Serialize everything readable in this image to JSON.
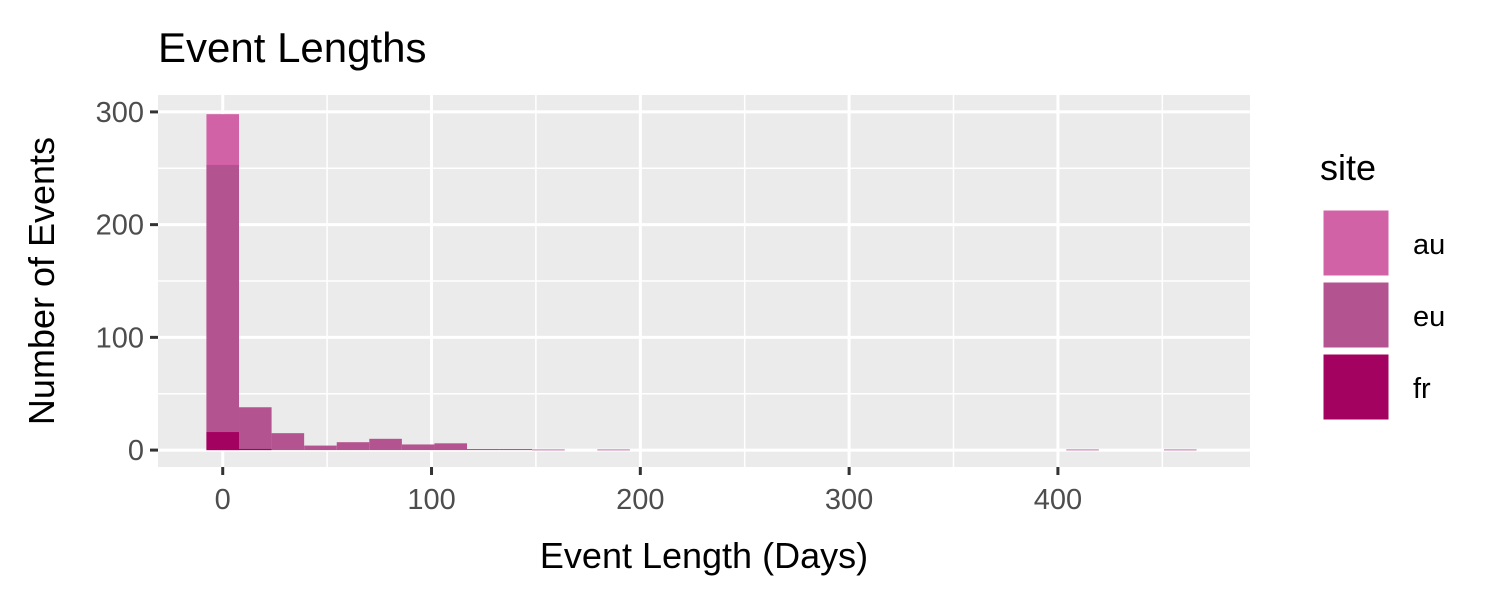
{
  "chart_data": {
    "type": "bar",
    "subtype": "histogram-overlaid",
    "title": "Event Lengths",
    "xlabel": "Event Length (Days)",
    "ylabel": "Number of Events",
    "xlim": [
      -31,
      492
    ],
    "ylim": [
      -15,
      315
    ],
    "x_ticks": [
      0,
      100,
      200,
      300,
      400
    ],
    "y_ticks": [
      0,
      100,
      200,
      300
    ],
    "grid": true,
    "panel_background": "#ebebeb",
    "legend": {
      "title": "site",
      "position": "right",
      "entries": [
        {
          "label": "au",
          "color": "#d162a6"
        },
        {
          "label": "eu",
          "color": "#b3538f"
        },
        {
          "label": "fr",
          "color": "#a30260"
        }
      ]
    },
    "bin_width": 15.6,
    "bin_centers": [
      0,
      15.6,
      31.2,
      46.8,
      62.4,
      78.0,
      93.6,
      109.2,
      124.8,
      140.4,
      156.0,
      187.2,
      411.8,
      458.6
    ],
    "series": [
      {
        "name": "au",
        "color": "#d162a6",
        "values": [
          298,
          0,
          0,
          0,
          0,
          0,
          0,
          0,
          0,
          0,
          0,
          0,
          0,
          0
        ]
      },
      {
        "name": "eu",
        "color": "#b3538f",
        "values": [
          253,
          38,
          15,
          4,
          7,
          10,
          5,
          6,
          1,
          1,
          0.5,
          0.5,
          0.5,
          0.5
        ]
      },
      {
        "name": "fr",
        "color": "#a30260",
        "values": [
          16,
          1,
          0,
          0,
          0,
          0,
          0,
          0,
          0,
          0,
          0,
          0,
          0,
          0
        ]
      }
    ]
  }
}
